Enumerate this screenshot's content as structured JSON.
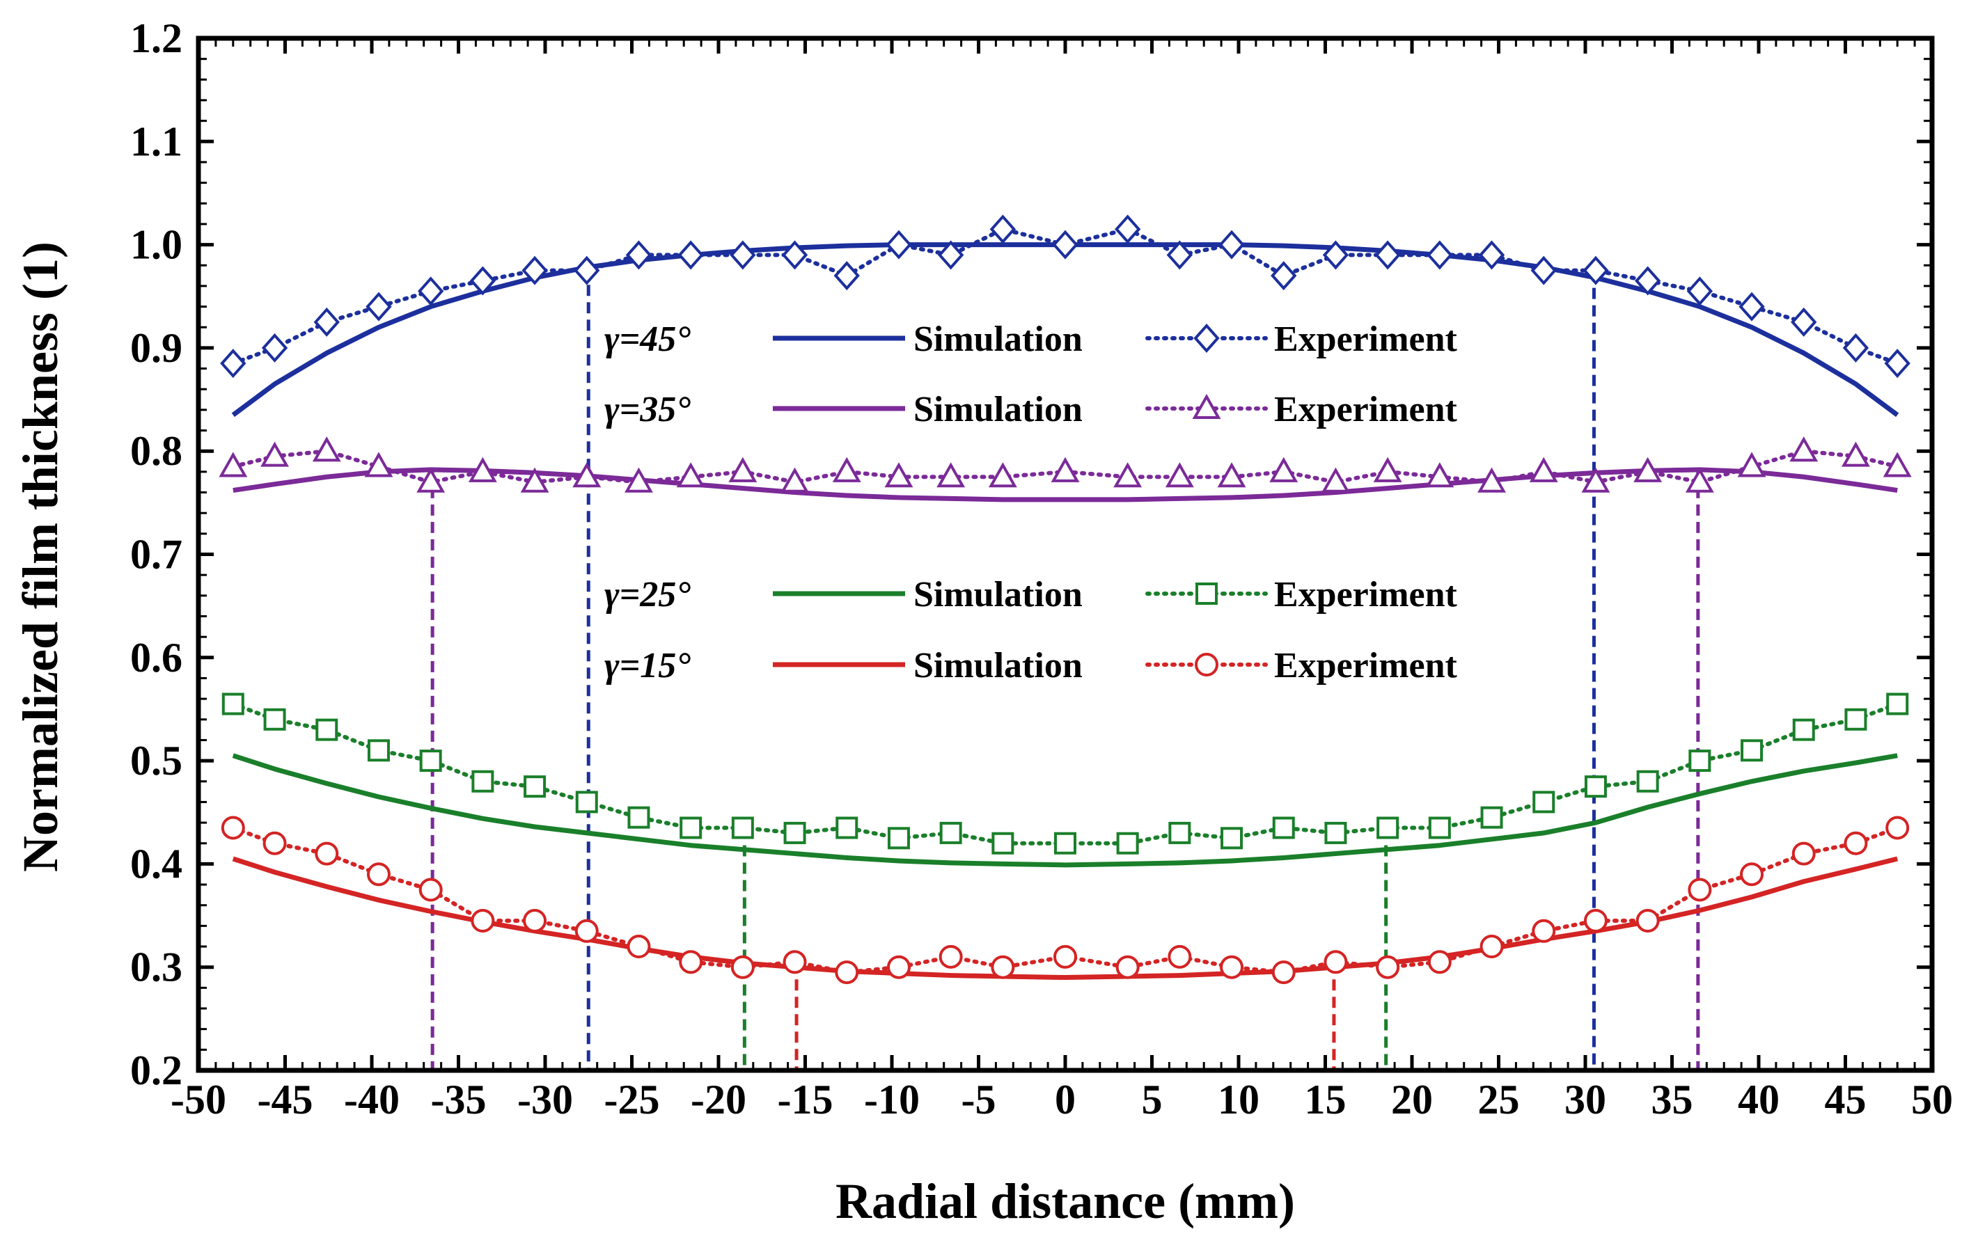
{
  "chart_data": {
    "type": "line",
    "xlabel": "Radial distance (mm)",
    "ylabel": "Normalized film thickness (1)",
    "xlim": [
      -50,
      50
    ],
    "ylim": [
      0.2,
      1.2
    ],
    "grid": false,
    "xticks": [
      "-50",
      "-45",
      "-40",
      "-35",
      "-30",
      "-25",
      "-20",
      "-15",
      "-10",
      "-5",
      "0",
      "5",
      "10",
      "15",
      "20",
      "25",
      "30",
      "35",
      "40",
      "45",
      "50"
    ],
    "yticks": [
      "0.2",
      "0.3",
      "0.4",
      "0.5",
      "0.6",
      "0.7",
      "0.8",
      "0.9",
      "1.0",
      "1.1",
      "1.2"
    ],
    "x": [
      -48,
      -45.6,
      -42.6,
      -39.6,
      -36.6,
      -33.6,
      -30.6,
      -27.6,
      -24.6,
      -21.6,
      -18.6,
      -15.6,
      -12.6,
      -9.6,
      -6.6,
      -3.6,
      0,
      3.6,
      6.6,
      9.6,
      12.6,
      15.6,
      18.6,
      21.6,
      24.6,
      27.6,
      30.6,
      33.6,
      36.6,
      39.6,
      42.6,
      45.6,
      48
    ],
    "groups": [
      {
        "gamma": "γ=45°",
        "color": "#1c2f9c",
        "marker": "diamond",
        "boundary_x": [
          -27.5,
          30.5
        ],
        "simulation_label": "Simulation",
        "experiment_label": "Experiment",
        "simulation": [
          0.835,
          0.865,
          0.895,
          0.92,
          0.94,
          0.955,
          0.968,
          0.978,
          0.985,
          0.99,
          0.994,
          0.997,
          0.999,
          1.0,
          1.0,
          1.0,
          1.0,
          1.0,
          1.0,
          1.0,
          0.999,
          0.997,
          0.994,
          0.99,
          0.985,
          0.978,
          0.968,
          0.955,
          0.94,
          0.92,
          0.895,
          0.865,
          0.835
        ],
        "experiment": [
          0.885,
          0.9,
          0.925,
          0.94,
          0.955,
          0.965,
          0.975,
          0.975,
          0.99,
          0.99,
          0.99,
          0.99,
          0.97,
          1.0,
          0.99,
          1.015,
          1.0,
          1.015,
          0.99,
          1.0,
          0.97,
          0.99,
          0.99,
          0.99,
          0.99,
          0.975,
          0.975,
          0.965,
          0.955,
          0.94,
          0.925,
          0.9,
          0.885
        ]
      },
      {
        "gamma": "γ=35°",
        "color": "#7b2a98",
        "marker": "triangle",
        "boundary_x": [
          -36.5,
          36.5
        ],
        "simulation_label": "Simulation",
        "experiment_label": "Experiment",
        "simulation": [
          0.762,
          0.768,
          0.775,
          0.78,
          0.782,
          0.781,
          0.779,
          0.776,
          0.772,
          0.768,
          0.764,
          0.76,
          0.757,
          0.755,
          0.754,
          0.753,
          0.753,
          0.753,
          0.754,
          0.755,
          0.757,
          0.76,
          0.764,
          0.768,
          0.772,
          0.776,
          0.779,
          0.781,
          0.782,
          0.78,
          0.775,
          0.768,
          0.762
        ],
        "experiment": [
          0.785,
          0.795,
          0.8,
          0.785,
          0.77,
          0.78,
          0.77,
          0.775,
          0.77,
          0.775,
          0.78,
          0.77,
          0.78,
          0.775,
          0.775,
          0.775,
          0.78,
          0.775,
          0.775,
          0.775,
          0.78,
          0.77,
          0.78,
          0.775,
          0.77,
          0.78,
          0.77,
          0.78,
          0.77,
          0.785,
          0.8,
          0.795,
          0.785
        ]
      },
      {
        "gamma": "γ=25°",
        "color": "#1a7f2a",
        "marker": "square",
        "boundary_x": [
          -18.5,
          18.5
        ],
        "simulation_label": "Simulation",
        "experiment_label": "Experiment",
        "simulation": [
          0.505,
          0.492,
          0.478,
          0.465,
          0.454,
          0.444,
          0.436,
          0.43,
          0.424,
          0.418,
          0.414,
          0.41,
          0.406,
          0.403,
          0.401,
          0.4,
          0.399,
          0.4,
          0.401,
          0.403,
          0.406,
          0.41,
          0.414,
          0.418,
          0.424,
          0.43,
          0.44,
          0.455,
          0.468,
          0.48,
          0.49,
          0.498,
          0.505
        ],
        "experiment": [
          0.555,
          0.54,
          0.53,
          0.51,
          0.5,
          0.48,
          0.475,
          0.46,
          0.445,
          0.435,
          0.435,
          0.43,
          0.435,
          0.425,
          0.43,
          0.42,
          0.42,
          0.42,
          0.43,
          0.425,
          0.435,
          0.43,
          0.435,
          0.435,
          0.445,
          0.46,
          0.475,
          0.48,
          0.5,
          0.51,
          0.53,
          0.54,
          0.555
        ]
      },
      {
        "gamma": "γ=15°",
        "color": "#d42424",
        "marker": "circle",
        "boundary_x": [
          -15.5,
          15.5
        ],
        "simulation_label": "Simulation",
        "experiment_label": "Experiment",
        "simulation": [
          0.405,
          0.392,
          0.378,
          0.365,
          0.354,
          0.344,
          0.335,
          0.327,
          0.318,
          0.31,
          0.304,
          0.3,
          0.296,
          0.294,
          0.292,
          0.291,
          0.29,
          0.291,
          0.292,
          0.294,
          0.296,
          0.3,
          0.304,
          0.31,
          0.318,
          0.327,
          0.335,
          0.344,
          0.355,
          0.368,
          0.383,
          0.395,
          0.405
        ],
        "experiment": [
          0.435,
          0.42,
          0.41,
          0.39,
          0.375,
          0.345,
          0.345,
          0.335,
          0.32,
          0.305,
          0.3,
          0.305,
          0.295,
          0.3,
          0.31,
          0.3,
          0.31,
          0.3,
          0.31,
          0.3,
          0.295,
          0.305,
          0.3,
          0.305,
          0.32,
          0.335,
          0.345,
          0.345,
          0.375,
          0.39,
          0.41,
          0.42,
          0.435
        ]
      }
    ]
  }
}
